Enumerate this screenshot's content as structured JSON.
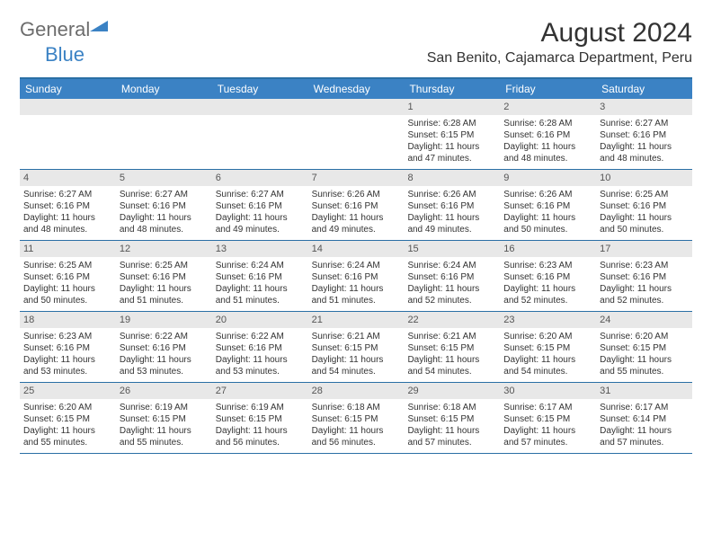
{
  "brand": {
    "part1": "General",
    "part2": "Blue",
    "logo_color": "#3b82c4",
    "neutral_color": "#6d6d6d"
  },
  "title": "August 2024",
  "location": "San Benito, Cajamarca Department, Peru",
  "colors": {
    "header_bg": "#3b82c4",
    "header_border": "#2a6fa5",
    "band_bg": "#e8e8e8",
    "row_border": "#2a6fa5",
    "text": "#333333"
  },
  "day_names": [
    "Sunday",
    "Monday",
    "Tuesday",
    "Wednesday",
    "Thursday",
    "Friday",
    "Saturday"
  ],
  "leading_blanks": 4,
  "days": [
    {
      "n": 1,
      "sr": "6:28 AM",
      "ss": "6:15 PM",
      "dl": "11 hours and 47 minutes."
    },
    {
      "n": 2,
      "sr": "6:28 AM",
      "ss": "6:16 PM",
      "dl": "11 hours and 48 minutes."
    },
    {
      "n": 3,
      "sr": "6:27 AM",
      "ss": "6:16 PM",
      "dl": "11 hours and 48 minutes."
    },
    {
      "n": 4,
      "sr": "6:27 AM",
      "ss": "6:16 PM",
      "dl": "11 hours and 48 minutes."
    },
    {
      "n": 5,
      "sr": "6:27 AM",
      "ss": "6:16 PM",
      "dl": "11 hours and 48 minutes."
    },
    {
      "n": 6,
      "sr": "6:27 AM",
      "ss": "6:16 PM",
      "dl": "11 hours and 49 minutes."
    },
    {
      "n": 7,
      "sr": "6:26 AM",
      "ss": "6:16 PM",
      "dl": "11 hours and 49 minutes."
    },
    {
      "n": 8,
      "sr": "6:26 AM",
      "ss": "6:16 PM",
      "dl": "11 hours and 49 minutes."
    },
    {
      "n": 9,
      "sr": "6:26 AM",
      "ss": "6:16 PM",
      "dl": "11 hours and 50 minutes."
    },
    {
      "n": 10,
      "sr": "6:25 AM",
      "ss": "6:16 PM",
      "dl": "11 hours and 50 minutes."
    },
    {
      "n": 11,
      "sr": "6:25 AM",
      "ss": "6:16 PM",
      "dl": "11 hours and 50 minutes."
    },
    {
      "n": 12,
      "sr": "6:25 AM",
      "ss": "6:16 PM",
      "dl": "11 hours and 51 minutes."
    },
    {
      "n": 13,
      "sr": "6:24 AM",
      "ss": "6:16 PM",
      "dl": "11 hours and 51 minutes."
    },
    {
      "n": 14,
      "sr": "6:24 AM",
      "ss": "6:16 PM",
      "dl": "11 hours and 51 minutes."
    },
    {
      "n": 15,
      "sr": "6:24 AM",
      "ss": "6:16 PM",
      "dl": "11 hours and 52 minutes."
    },
    {
      "n": 16,
      "sr": "6:23 AM",
      "ss": "6:16 PM",
      "dl": "11 hours and 52 minutes."
    },
    {
      "n": 17,
      "sr": "6:23 AM",
      "ss": "6:16 PM",
      "dl": "11 hours and 52 minutes."
    },
    {
      "n": 18,
      "sr": "6:23 AM",
      "ss": "6:16 PM",
      "dl": "11 hours and 53 minutes."
    },
    {
      "n": 19,
      "sr": "6:22 AM",
      "ss": "6:16 PM",
      "dl": "11 hours and 53 minutes."
    },
    {
      "n": 20,
      "sr": "6:22 AM",
      "ss": "6:16 PM",
      "dl": "11 hours and 53 minutes."
    },
    {
      "n": 21,
      "sr": "6:21 AM",
      "ss": "6:15 PM",
      "dl": "11 hours and 54 minutes."
    },
    {
      "n": 22,
      "sr": "6:21 AM",
      "ss": "6:15 PM",
      "dl": "11 hours and 54 minutes."
    },
    {
      "n": 23,
      "sr": "6:20 AM",
      "ss": "6:15 PM",
      "dl": "11 hours and 54 minutes."
    },
    {
      "n": 24,
      "sr": "6:20 AM",
      "ss": "6:15 PM",
      "dl": "11 hours and 55 minutes."
    },
    {
      "n": 25,
      "sr": "6:20 AM",
      "ss": "6:15 PM",
      "dl": "11 hours and 55 minutes."
    },
    {
      "n": 26,
      "sr": "6:19 AM",
      "ss": "6:15 PM",
      "dl": "11 hours and 55 minutes."
    },
    {
      "n": 27,
      "sr": "6:19 AM",
      "ss": "6:15 PM",
      "dl": "11 hours and 56 minutes."
    },
    {
      "n": 28,
      "sr": "6:18 AM",
      "ss": "6:15 PM",
      "dl": "11 hours and 56 minutes."
    },
    {
      "n": 29,
      "sr": "6:18 AM",
      "ss": "6:15 PM",
      "dl": "11 hours and 57 minutes."
    },
    {
      "n": 30,
      "sr": "6:17 AM",
      "ss": "6:15 PM",
      "dl": "11 hours and 57 minutes."
    },
    {
      "n": 31,
      "sr": "6:17 AM",
      "ss": "6:14 PM",
      "dl": "11 hours and 57 minutes."
    }
  ],
  "labels": {
    "sunrise": "Sunrise:",
    "sunset": "Sunset:",
    "daylight": "Daylight:"
  }
}
